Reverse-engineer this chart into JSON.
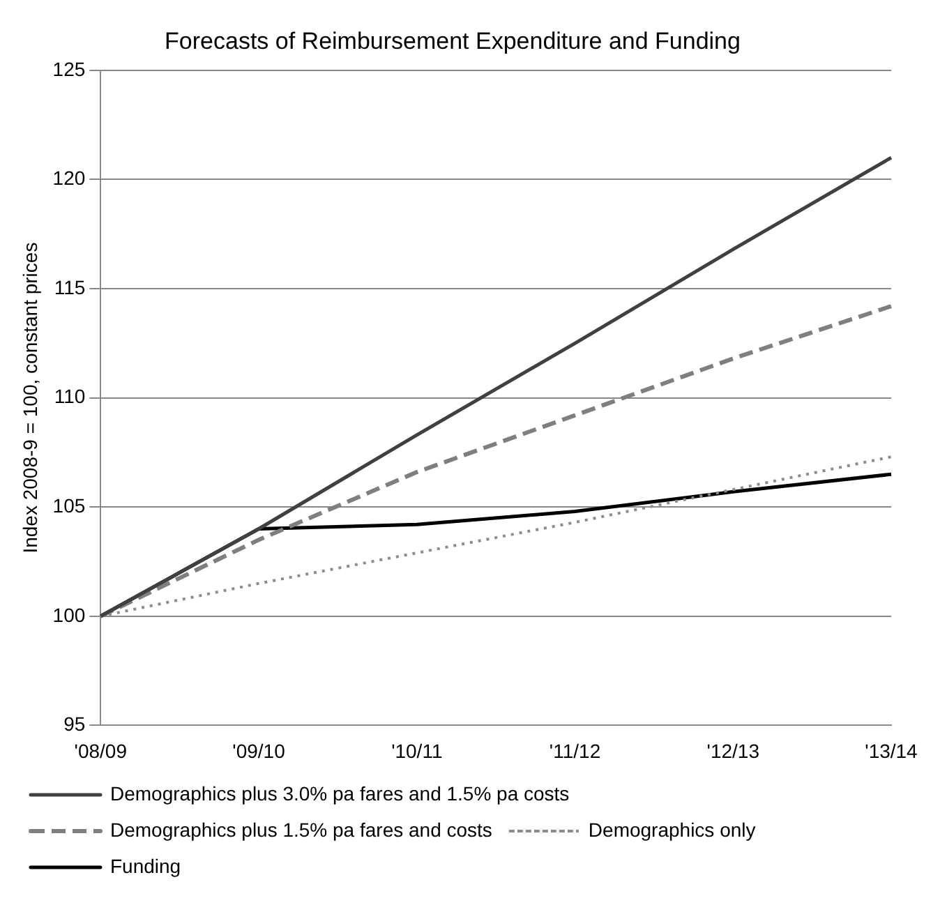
{
  "chart_data": {
    "type": "line",
    "title": "Forecasts of Reimbursement Expenditure and Funding",
    "ylabel": "Index 2008-9 = 100, constant prices",
    "categories": [
      "'08/09",
      "'09/10",
      "'10/11",
      "'11/12",
      "'12/13",
      "'13/14"
    ],
    "series": [
      {
        "name": "Demographics plus 3.0% pa fares and 1.5% pa costs",
        "color": "#404040",
        "line_style": "solid",
        "values": [
          100,
          104,
          108.3,
          112.5,
          116.8,
          121
        ]
      },
      {
        "name": "Demographics plus 1.5% pa fares and costs",
        "color": "#7f7f7f",
        "line_style": "dashed",
        "values": [
          100,
          103.5,
          106.6,
          109.2,
          111.8,
          114.2
        ]
      },
      {
        "name": "Demographics only",
        "color": "#8c8c8c",
        "line_style": "dotted",
        "values": [
          100,
          101.5,
          102.9,
          104.3,
          105.8,
          107.3
        ]
      },
      {
        "name": "Funding",
        "color": "#000000",
        "line_style": "solid",
        "values": [
          100,
          104,
          104.2,
          104.8,
          105.7,
          106.5
        ]
      }
    ],
    "ylim": [
      95,
      125
    ],
    "yticks": [
      95,
      100,
      105,
      110,
      115,
      120,
      125
    ],
    "grid": "y",
    "legend": "bottom",
    "marker": "none"
  }
}
